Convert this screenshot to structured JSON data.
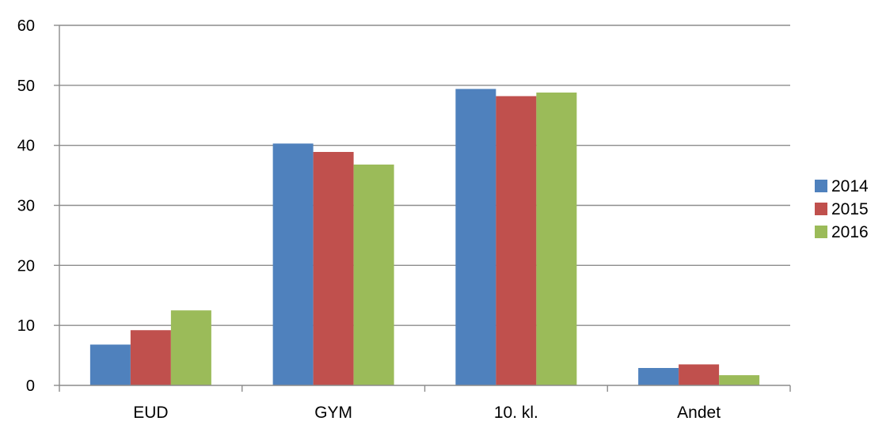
{
  "chart_data": {
    "type": "bar",
    "categories": [
      "EUD",
      "GYM",
      "10. kl.",
      "Andet"
    ],
    "series": [
      {
        "name": "2014",
        "color": "#4f81bd",
        "values": [
          6.8,
          40.3,
          49.4,
          2.9
        ]
      },
      {
        "name": "2015",
        "color": "#c0504d",
        "values": [
          9.2,
          38.9,
          48.2,
          3.5
        ]
      },
      {
        "name": "2016",
        "color": "#9bbb59",
        "values": [
          12.5,
          36.8,
          48.8,
          1.7
        ]
      }
    ],
    "title": "",
    "xlabel": "",
    "ylabel": "",
    "ylim": [
      0,
      60
    ],
    "yticks": [
      0,
      10,
      20,
      30,
      40,
      50,
      60
    ],
    "grid": true,
    "legend_position": "right"
  }
}
